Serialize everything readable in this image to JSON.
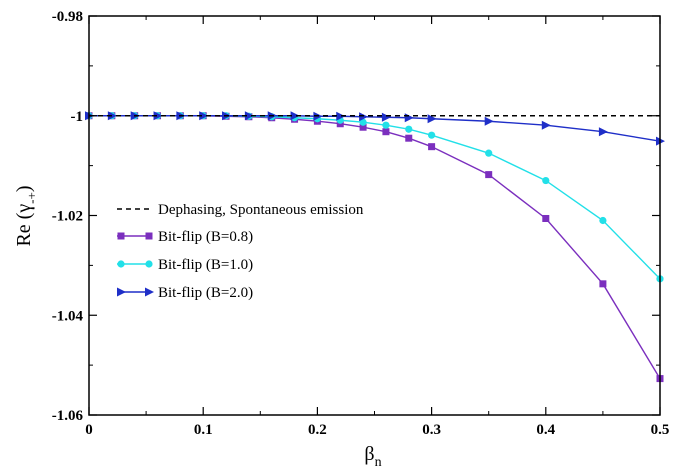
{
  "chart_data": {
    "type": "line",
    "xlabel": "β",
    "xlabel_sub": "n",
    "ylabel": "Re (γ",
    "ylabel_sub": "-+",
    "ylabel_close": ")",
    "xlim": [
      0,
      0.5
    ],
    "ylim": [
      -1.06,
      -0.98
    ],
    "x_ticks": [
      "0",
      "0.1",
      "0.2",
      "0.3",
      "0.4",
      "0.5"
    ],
    "y_ticks": [
      "-0.98",
      "-1",
      "-1.02",
      "-1.04",
      "-1.06"
    ],
    "grid": false,
    "legend_position": "center-left",
    "series": [
      {
        "name": "Dephasing, Spontaneous emission",
        "style": "dashed",
        "color": "#000000",
        "marker": "none",
        "x": [
          0,
          0.5
        ],
        "y": [
          -1,
          -1
        ]
      },
      {
        "name": "Bit-flip (B=0.8)",
        "style": "solid",
        "color": "#7b2fbe",
        "marker": "square",
        "x": [
          0,
          0.02,
          0.04,
          0.06,
          0.08,
          0.1,
          0.12,
          0.14,
          0.16,
          0.18,
          0.2,
          0.22,
          0.24,
          0.26,
          0.28,
          0.3,
          0.35,
          0.4,
          0.45,
          0.5
        ],
        "y": [
          -1.0,
          -1.0,
          -1.0,
          -1.0,
          -1.0,
          -1.0,
          -1.0001,
          -1.0002,
          -1.0004,
          -1.0007,
          -1.0011,
          -1.0016,
          -1.0023,
          -1.0032,
          -1.0045,
          -1.0062,
          -1.0118,
          -1.0206,
          -1.0337,
          -1.0527
        ]
      },
      {
        "name": "Bit-flip (B=1.0)",
        "style": "solid",
        "color": "#22e0e8",
        "marker": "circle",
        "x": [
          0,
          0.02,
          0.04,
          0.06,
          0.08,
          0.1,
          0.12,
          0.14,
          0.16,
          0.18,
          0.2,
          0.22,
          0.24,
          0.26,
          0.28,
          0.3,
          0.35,
          0.4,
          0.45,
          0.5
        ],
        "y": [
          -1.0,
          -1.0,
          -1.0,
          -1.0,
          -1.0,
          -1.0,
          -1.0,
          -1.0001,
          -1.0002,
          -1.0004,
          -1.0006,
          -1.0009,
          -1.0013,
          -1.0019,
          -1.0027,
          -1.0039,
          -1.0075,
          -1.013,
          -1.021,
          -1.0327
        ]
      },
      {
        "name": "Bit-flip (B=2.0)",
        "style": "solid",
        "color": "#1f2fc8",
        "marker": "triangle-right",
        "x": [
          0,
          0.02,
          0.04,
          0.06,
          0.08,
          0.1,
          0.12,
          0.14,
          0.16,
          0.18,
          0.2,
          0.22,
          0.24,
          0.26,
          0.28,
          0.3,
          0.35,
          0.4,
          0.45,
          0.5
        ],
        "y": [
          -1.0,
          -1.0,
          -1.0,
          -1.0,
          -1.0,
          -1.0,
          -1.0,
          -1.0,
          -1.0,
          -1.0,
          -1.0001,
          -1.0001,
          -1.0002,
          -1.0003,
          -1.0004,
          -1.0006,
          -1.0011,
          -1.0019,
          -1.0032,
          -1.0051
        ]
      }
    ]
  }
}
